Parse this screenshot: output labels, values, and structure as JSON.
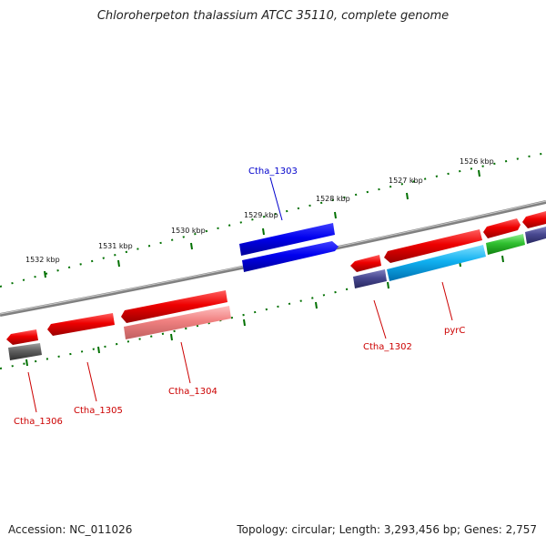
{
  "title": "Chloroherpeton thalassium ATCC 35110, complete genome",
  "accession": "Accession: NC_011026",
  "summary": "Topology: circular; Length: 3,293,456 bp; Genes: 2,757",
  "ticks": [
    "1526 kbp",
    "1527 kbp",
    "1528 kbp",
    "1529 kbp",
    "1530 kbp",
    "1531 kbp",
    "1532 kbp"
  ],
  "genes": [
    {
      "id": "ctha1303",
      "label": "Ctha_1303",
      "color": "#0000cc"
    },
    {
      "id": "ctha1302",
      "label": "Ctha_1302",
      "color": "#cc0000"
    },
    {
      "id": "pyrc",
      "label": "pyrC",
      "color": "#cc0000"
    },
    {
      "id": "ctha1304",
      "label": "Ctha_1304",
      "color": "#cc0000"
    },
    {
      "id": "ctha1305",
      "label": "Ctha_1305",
      "color": "#cc0000"
    },
    {
      "id": "ctha1306",
      "label": "Ctha_1306",
      "color": "#cc0000"
    }
  ],
  "colors": {
    "backbone": "#808080",
    "tick": "#007000",
    "cds_forward": "#ee0000",
    "cds_reverse": "#0000ee",
    "rna": "#ff8080",
    "cyan": "#10b0f0",
    "purple": "#484890",
    "green": "#30c030",
    "gray": "#606060"
  }
}
